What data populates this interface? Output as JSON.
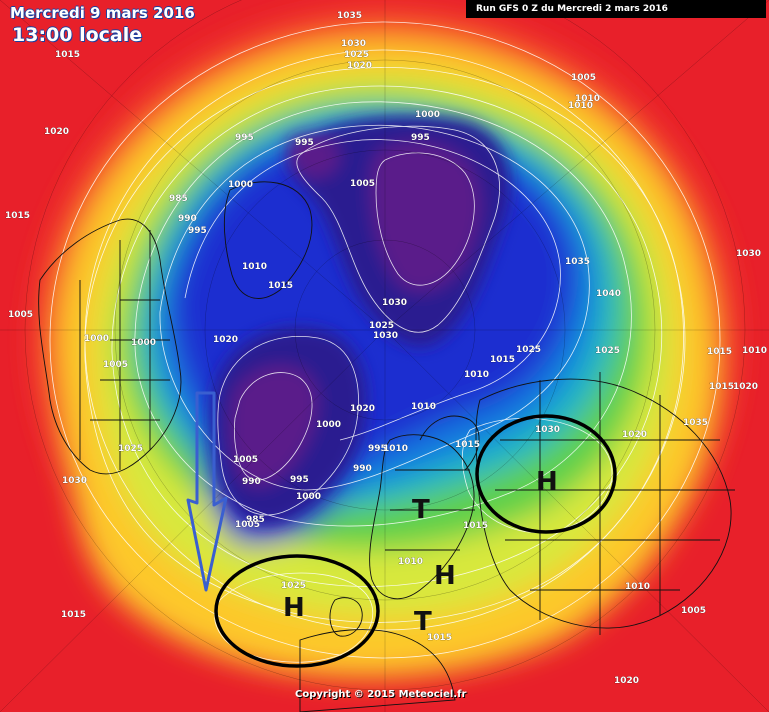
{
  "header": {
    "date": "Mercredi 9 mars 2016",
    "time": "13:00 locale",
    "run": "Run GFS 0 Z du Mercredi 2 mars 2016"
  },
  "footer": {
    "copyright": "Copyright © 2015 Meteociel.fr"
  },
  "isobars": {
    "labels": [
      "1035",
      "1030",
      "1025",
      "1020",
      "1015",
      "1020",
      "1015",
      "1005",
      "1010",
      "1010",
      "1000",
      "995",
      "995",
      "995",
      "985",
      "990",
      "995",
      "1000",
      "1005",
      "1010",
      "1015",
      "1020",
      "1005",
      "1000",
      "1000",
      "1005",
      "1035",
      "1040",
      "1030",
      "1025",
      "1025",
      "1030",
      "1025",
      "1015",
      "1010",
      "1030",
      "1010",
      "1015",
      "1015",
      "1020",
      "1010",
      "1020",
      "1000",
      "1005",
      "990",
      "995",
      "1000",
      "1005",
      "985",
      "990",
      "995",
      "1010",
      "1015",
      "1030",
      "1035",
      "1020",
      "1015",
      "1010",
      "1025",
      "1015",
      "1010",
      "1005",
      "1030",
      "1015",
      "1025",
      "1020",
      "1015",
      "1010",
      "1005"
    ]
  },
  "systems": {
    "highs": [
      "H",
      "H",
      "H"
    ],
    "lows": [
      "T",
      "T"
    ]
  },
  "annotations": {
    "arrow_color": "#3a5fd0",
    "circle_color": "#000000"
  },
  "palette": {
    "very_high": "#e8202a",
    "high": "#f5502a",
    "mid_high": "#fb8a2a",
    "medium": "#fdc82c",
    "mid": "#d8e83c",
    "low_mid": "#5fd049",
    "low": "#1fb6c6",
    "lower": "#1278e0",
    "very_low": "#1a2fd0",
    "deep": "#2a1a90",
    "deepest": "#5a1a8a"
  }
}
